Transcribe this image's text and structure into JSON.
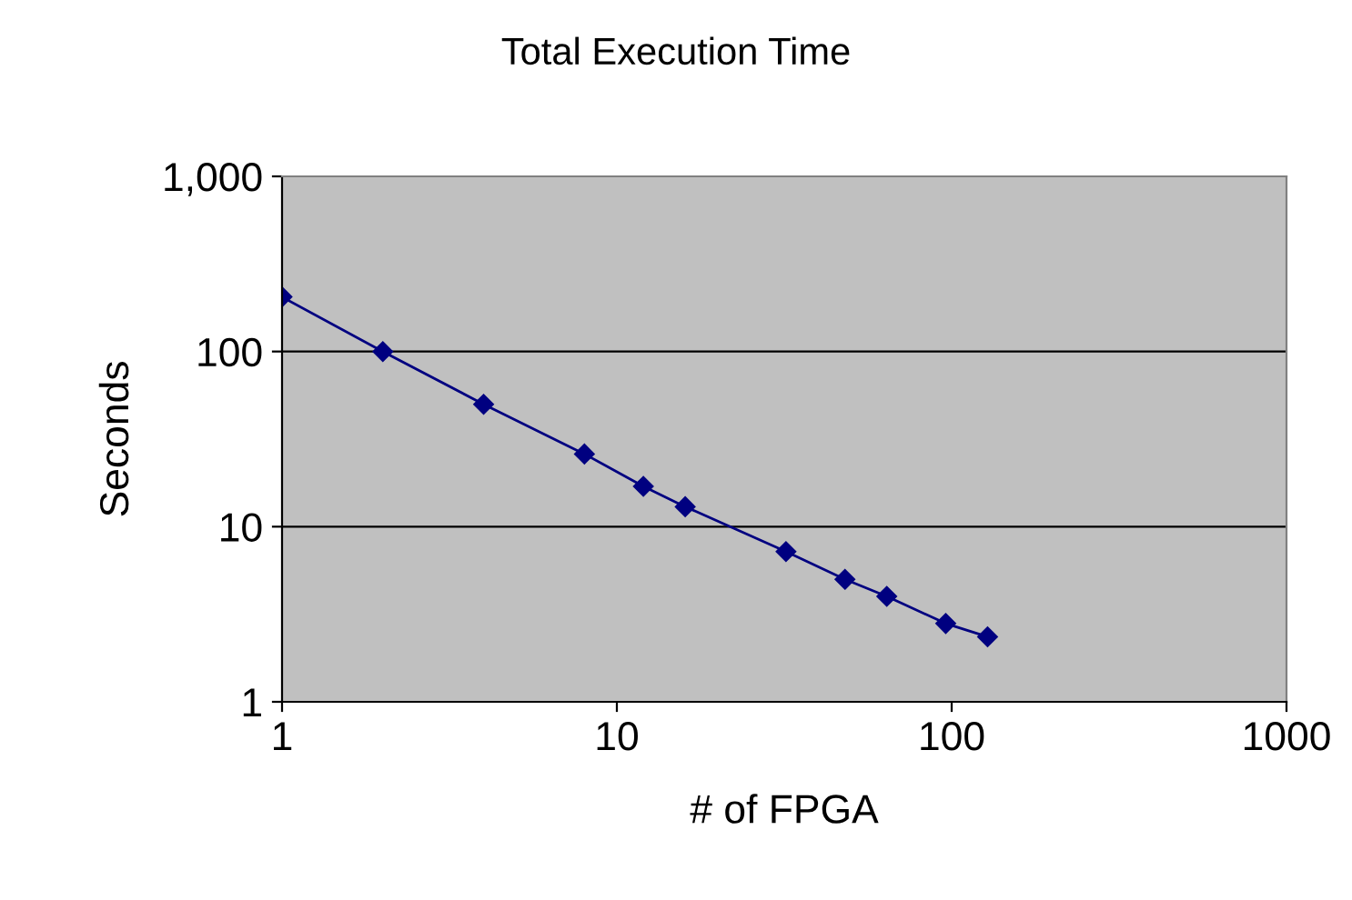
{
  "chart_data": {
    "type": "line",
    "title": "Total Execution Time",
    "xlabel": "# of FPGA",
    "ylabel": "Seconds",
    "log": "xy",
    "x": [
      1,
      2,
      4,
      8,
      12,
      16,
      32,
      48,
      64,
      96,
      128
    ],
    "series": [
      {
        "color": "#000080",
        "values": [
          205,
          100,
          50,
          26,
          17,
          13,
          7.2,
          5,
          4,
          2.8,
          2.35
        ]
      }
    ],
    "xlim": [
      1,
      1000
    ],
    "xticks": [
      1,
      10,
      100,
      1000
    ],
    "ylim": [
      1,
      1000
    ],
    "yticks": [
      1,
      10,
      100,
      {
        "value": 1000,
        "label": "1,000"
      }
    ],
    "grid": "y",
    "marker": "diamond",
    "line_style": "solid",
    "legend": false
  }
}
